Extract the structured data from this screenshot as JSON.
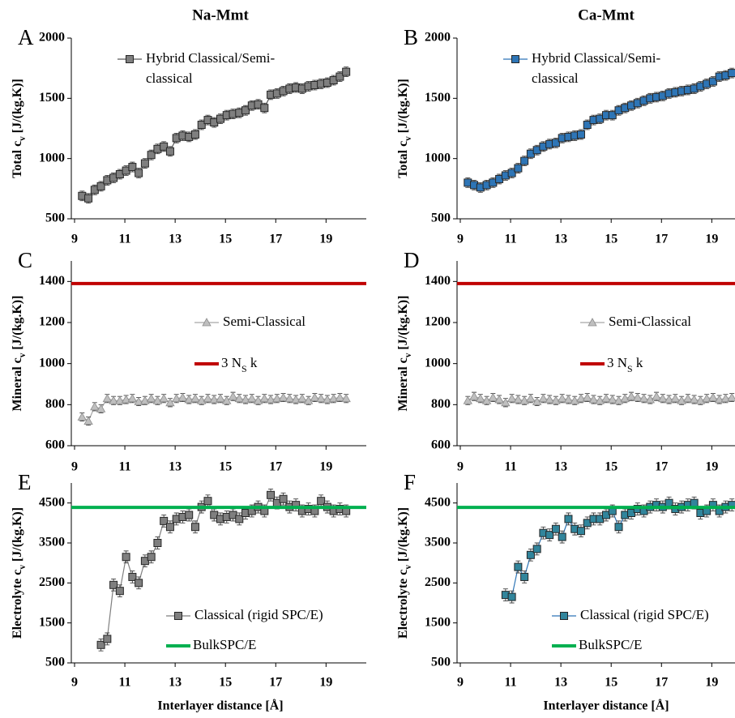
{
  "chart_data": [
    {
      "type": "line",
      "title": "Na-Mmt",
      "panel_label": "A",
      "ylabel": [
        "Total c",
        "v",
        " [J/(kg.K)]"
      ],
      "x": [
        9.3,
        9.55,
        9.8,
        10.05,
        10.3,
        10.55,
        10.8,
        11.05,
        11.3,
        11.55,
        11.8,
        12.05,
        12.3,
        12.55,
        12.8,
        13.05,
        13.3,
        13.55,
        13.8,
        14.05,
        14.3,
        14.55,
        14.8,
        15.05,
        15.3,
        15.55,
        15.8,
        16.05,
        16.3,
        16.55,
        16.8,
        17.05,
        17.3,
        17.55,
        17.8,
        18.05,
        18.3,
        18.55,
        18.8,
        19.05,
        19.3,
        19.55,
        19.8
      ],
      "xlim": [
        9,
        20.6
      ],
      "xticks": [
        9,
        11,
        13,
        15,
        17,
        19
      ],
      "ylim": [
        500,
        2000
      ],
      "yticks": [
        500,
        1000,
        1500,
        2000
      ],
      "series": [
        {
          "name": [
            "Hybrid Classical/Semi-",
            "classical"
          ],
          "color": "#7f7f7f",
          "line_color": "#595959",
          "marker": "square",
          "error": 40,
          "values": [
            690,
            670,
            740,
            770,
            820,
            840,
            870,
            900,
            930,
            880,
            960,
            1030,
            1080,
            1100,
            1060,
            1170,
            1190,
            1180,
            1200,
            1280,
            1320,
            1300,
            1330,
            1360,
            1370,
            1380,
            1400,
            1440,
            1450,
            1420,
            1530,
            1540,
            1560,
            1580,
            1590,
            1580,
            1600,
            1610,
            1620,
            1630,
            1650,
            1680,
            1720
          ]
        }
      ]
    },
    {
      "type": "line",
      "title": "Ca-Mmt",
      "panel_label": "B",
      "ylabel": [
        "Total c",
        "v",
        " [J/(kg.K)]"
      ],
      "x": [
        9.3,
        9.55,
        9.8,
        10.05,
        10.3,
        10.55,
        10.8,
        11.05,
        11.3,
        11.55,
        11.8,
        12.05,
        12.3,
        12.55,
        12.8,
        13.05,
        13.3,
        13.55,
        13.8,
        14.05,
        14.3,
        14.55,
        14.8,
        15.05,
        15.3,
        15.55,
        15.8,
        16.05,
        16.3,
        16.55,
        16.8,
        17.05,
        17.3,
        17.55,
        17.8,
        18.05,
        18.3,
        18.55,
        18.8,
        19.05,
        19.3,
        19.55,
        19.8
      ],
      "xlim": [
        9,
        20.6
      ],
      "xticks": [
        9,
        11,
        13,
        15,
        17,
        19
      ],
      "ylim": [
        500,
        2000
      ],
      "yticks": [
        500,
        1000,
        1500,
        2000
      ],
      "series": [
        {
          "name": [
            "Hybrid Classical/Semi-",
            "classical"
          ],
          "color": "#2e75b6",
          "line_color": "#2e75b6",
          "marker": "square",
          "error": 40,
          "values": [
            800,
            780,
            760,
            780,
            800,
            830,
            860,
            880,
            920,
            980,
            1040,
            1070,
            1100,
            1120,
            1130,
            1170,
            1180,
            1190,
            1200,
            1280,
            1320,
            1330,
            1360,
            1360,
            1400,
            1420,
            1440,
            1460,
            1480,
            1500,
            1510,
            1520,
            1540,
            1550,
            1560,
            1570,
            1580,
            1600,
            1620,
            1640,
            1680,
            1690,
            1710
          ]
        }
      ]
    },
    {
      "type": "line",
      "panel_label": "C",
      "ylabel": [
        "Mineral c",
        "v",
        " [J/(kg.K)]"
      ],
      "x": [
        9.3,
        9.55,
        9.8,
        10.05,
        10.3,
        10.55,
        10.8,
        11.05,
        11.3,
        11.55,
        11.8,
        12.05,
        12.3,
        12.55,
        12.8,
        13.05,
        13.3,
        13.55,
        13.8,
        14.05,
        14.3,
        14.55,
        14.8,
        15.05,
        15.3,
        15.55,
        15.8,
        16.05,
        16.3,
        16.55,
        16.8,
        17.05,
        17.3,
        17.55,
        17.8,
        18.05,
        18.3,
        18.55,
        18.8,
        19.05,
        19.3,
        19.55,
        19.8
      ],
      "xlim": [
        9,
        20.6
      ],
      "xticks": [
        9,
        11,
        13,
        15,
        17,
        19
      ],
      "ylim": [
        600,
        1500
      ],
      "yticks": [
        600,
        800,
        1000,
        1200,
        1400
      ],
      "series": [
        {
          "name": [
            "Semi-Classical"
          ],
          "color": "#bfbfbf",
          "line_color": "#a6a6a6",
          "marker": "triangle",
          "error": 20,
          "values": [
            740,
            720,
            790,
            780,
            830,
            820,
            820,
            825,
            830,
            815,
            820,
            830,
            820,
            830,
            810,
            830,
            835,
            825,
            830,
            820,
            830,
            825,
            830,
            820,
            840,
            830,
            825,
            830,
            820,
            830,
            825,
            830,
            835,
            830,
            825,
            830,
            820,
            835,
            830,
            825,
            830,
            835,
            830
          ]
        },
        {
          "name": [
            "3 N",
            "S",
            " k"
          ],
          "color": "#c00000",
          "hline": 1390
        }
      ]
    },
    {
      "type": "line",
      "panel_label": "D",
      "ylabel": [
        "Mineral c",
        "v",
        " [J/(kg.K)]"
      ],
      "x": [
        9.3,
        9.55,
        9.8,
        10.05,
        10.3,
        10.55,
        10.8,
        11.05,
        11.3,
        11.55,
        11.8,
        12.05,
        12.3,
        12.55,
        12.8,
        13.05,
        13.3,
        13.55,
        13.8,
        14.05,
        14.3,
        14.55,
        14.8,
        15.05,
        15.3,
        15.55,
        15.8,
        16.05,
        16.3,
        16.55,
        16.8,
        17.05,
        17.3,
        17.55,
        17.8,
        18.05,
        18.3,
        18.55,
        18.8,
        19.05,
        19.3,
        19.55,
        19.8
      ],
      "xlim": [
        9,
        20.6
      ],
      "xticks": [
        9,
        11,
        13,
        15,
        17,
        19
      ],
      "ylim": [
        600,
        1500
      ],
      "yticks": [
        600,
        800,
        1000,
        1200,
        1400
      ],
      "series": [
        {
          "name": [
            "Semi-Classical"
          ],
          "color": "#bfbfbf",
          "line_color": "#a6a6a6",
          "marker": "triangle",
          "error": 20,
          "values": [
            820,
            840,
            830,
            820,
            835,
            825,
            810,
            830,
            825,
            820,
            830,
            815,
            830,
            825,
            820,
            830,
            825,
            820,
            830,
            835,
            825,
            820,
            830,
            825,
            820,
            830,
            840,
            835,
            830,
            825,
            840,
            830,
            825,
            830,
            820,
            830,
            825,
            820,
            830,
            835,
            825,
            830,
            835
          ]
        },
        {
          "name": [
            "3 N",
            "S",
            " k"
          ],
          "color": "#c00000",
          "hline": 1390
        }
      ]
    },
    {
      "type": "line",
      "panel_label": "E",
      "ylabel": [
        "Electrolyte c",
        "v",
        " [J/(kg.K)]"
      ],
      "xlabel": "Interlayer distance [Å]",
      "x": [
        9.3,
        9.55,
        9.8,
        10.05,
        10.3,
        10.55,
        10.8,
        11.05,
        11.3,
        11.55,
        11.8,
        12.05,
        12.3,
        12.55,
        12.8,
        13.05,
        13.3,
        13.55,
        13.8,
        14.05,
        14.3,
        14.55,
        14.8,
        15.05,
        15.3,
        15.55,
        15.8,
        16.05,
        16.3,
        16.55,
        16.8,
        17.05,
        17.3,
        17.55,
        17.8,
        18.05,
        18.3,
        18.55,
        18.8,
        19.05,
        19.3,
        19.55,
        19.8
      ],
      "xlim": [
        9,
        20.6
      ],
      "xticks": [
        9,
        11,
        13,
        15,
        17,
        19
      ],
      "ylim": [
        500,
        5000
      ],
      "yticks": [
        500,
        1500,
        2500,
        3500,
        4500
      ],
      "series": [
        {
          "name": [
            "Classical (rigid SPC/E)"
          ],
          "color": "#7f7f7f",
          "line_color": "#7f7f7f",
          "marker": "square",
          "error": 150,
          "values": [
            null,
            null,
            null,
            950,
            1100,
            2450,
            2300,
            3150,
            2650,
            2500,
            3050,
            3150,
            3500,
            4050,
            3900,
            4100,
            4150,
            4200,
            3900,
            4400,
            4550,
            4200,
            4100,
            4150,
            4200,
            4100,
            4250,
            4300,
            4400,
            4300,
            4700,
            4500,
            4600,
            4400,
            4450,
            4300,
            4350,
            4300,
            4550,
            4400,
            4300,
            4350,
            4300
          ]
        },
        {
          "name": [
            "BulkSPC/E"
          ],
          "color": "#00b050",
          "hline": 4390
        }
      ]
    },
    {
      "type": "line",
      "panel_label": "F",
      "ylabel": [
        "Electrolyte c",
        "v",
        " [J/(kg.K)]"
      ],
      "xlabel": "Interlayer distance [Å]",
      "x": [
        9.3,
        9.55,
        9.8,
        10.05,
        10.3,
        10.55,
        10.8,
        11.05,
        11.3,
        11.55,
        11.8,
        12.05,
        12.3,
        12.55,
        12.8,
        13.05,
        13.3,
        13.55,
        13.8,
        14.05,
        14.3,
        14.55,
        14.8,
        15.05,
        15.3,
        15.55,
        15.8,
        16.05,
        16.3,
        16.55,
        16.8,
        17.05,
        17.3,
        17.55,
        17.8,
        18.05,
        18.3,
        18.55,
        18.8,
        19.05,
        19.3,
        19.55,
        19.8
      ],
      "xlim": [
        9,
        20.6
      ],
      "xticks": [
        9,
        11,
        13,
        15,
        17,
        19
      ],
      "ylim": [
        500,
        5000
      ],
      "yticks": [
        500,
        1500,
        2500,
        3500,
        4500
      ],
      "series": [
        {
          "name": [
            "Classical (rigid SPC/E)"
          ],
          "color": "#31859c",
          "line_color": "#2e75b6",
          "marker": "square",
          "error": 150,
          "values": [
            null,
            null,
            null,
            null,
            null,
            null,
            2200,
            2150,
            2900,
            2650,
            3200,
            3350,
            3750,
            3700,
            3850,
            3650,
            4100,
            3850,
            3800,
            4000,
            4100,
            4100,
            4200,
            4300,
            3900,
            4200,
            4250,
            4350,
            4300,
            4400,
            4450,
            4400,
            4500,
            4350,
            4400,
            4450,
            4500,
            4250,
            4300,
            4450,
            4300,
            4400,
            4450
          ]
        },
        {
          "name": [
            "BulkSPC/E"
          ],
          "color": "#00b050",
          "hline": 4390
        }
      ]
    }
  ]
}
